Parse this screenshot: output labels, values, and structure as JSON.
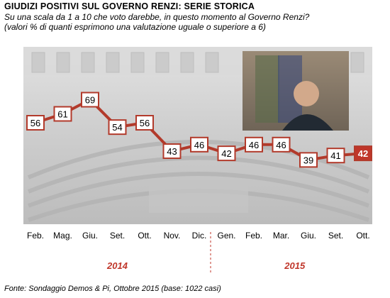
{
  "title": "GIUDIZI POSITIVI SUL GOVERNO RENZI: SERIE STORICA",
  "subtitle_lines": [
    "Su una scala da 1 a 10 che voto darebbe, in questo momento al Governo Renzi?",
    "(valori % di quanti esprimono una valutazione uguale o superiore a 6)"
  ],
  "source": "Fonte: Sondaggio Demos & Pi, Ottobre 2015 (base: 1022 casi)",
  "chart_data": {
    "type": "line",
    "categories": [
      "Feb.",
      "Mag.",
      "Giu.",
      "Set.",
      "Ott.",
      "Nov.",
      "Dic.",
      "Gen.",
      "Feb.",
      "Mar.",
      "Giu.",
      "Set.",
      "Ott."
    ],
    "series": [
      {
        "values": [
          56,
          61,
          69,
          54,
          56,
          43,
          46,
          42,
          46,
          46,
          39,
          41,
          42
        ]
      }
    ],
    "year_labels": [
      {
        "label": "2014",
        "from": 0,
        "to": 6
      },
      {
        "label": "2015",
        "from": 7,
        "to": 12
      }
    ],
    "highlight_last": true,
    "colors": {
      "line": "#b23a2b",
      "box_border": "#b23a2b",
      "box_fill": "#ffffff",
      "last_box_fill": "#c0362a",
      "year_label": "#c0362a",
      "background_photo": "#bdbdbd"
    }
  }
}
